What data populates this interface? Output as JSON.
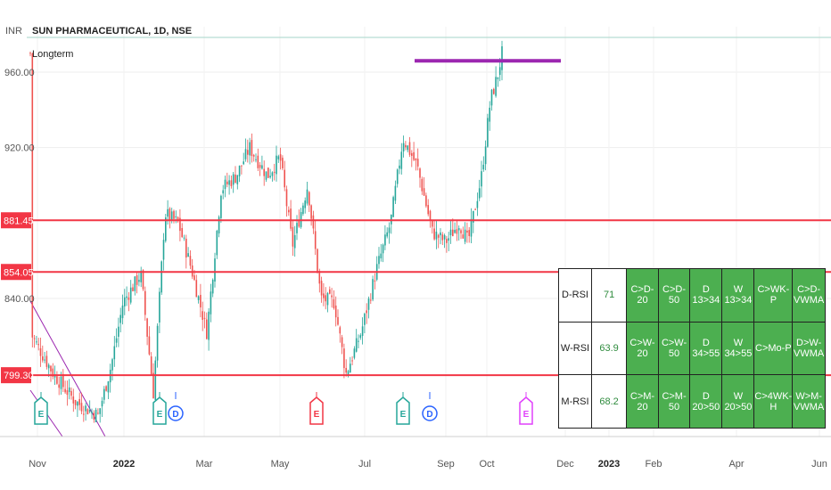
{
  "header": {
    "currency": "INR",
    "symbol_title": "SUN PHARMACEUTICAL, 1D, NSE",
    "indicator_name": "Longterm"
  },
  "chart_data": {
    "type": "candlestick",
    "title": "SUN PHARMACEUTICAL, 1D, NSE",
    "ylabel": "INR",
    "ylim": [
      773,
      976
    ],
    "y_ticks": [
      {
        "value": 960,
        "label": "960.00"
      },
      {
        "value": 920,
        "label": "920.00"
      },
      {
        "value": 840,
        "label": "840.00"
      }
    ],
    "x_ticks": [
      {
        "label": "Nov",
        "bold": false
      },
      {
        "label": "2022",
        "bold": true
      },
      {
        "label": "Mar",
        "bold": false
      },
      {
        "label": "May",
        "bold": false
      },
      {
        "label": "Jul",
        "bold": false
      },
      {
        "label": "Sep",
        "bold": false
      },
      {
        "label": "Oct",
        "bold": false
      },
      {
        "label": "Dec",
        "bold": false
      },
      {
        "label": "2023",
        "bold": true
      },
      {
        "label": "Feb",
        "bold": false
      },
      {
        "label": "Apr",
        "bold": false
      },
      {
        "label": "Jun",
        "bold": false
      }
    ],
    "levels": [
      {
        "value": 881.45,
        "label": "881.45",
        "color": "#f23645"
      },
      {
        "value": 854.05,
        "label": "854.05",
        "color": "#f23645"
      },
      {
        "value": 799.3,
        "label": "799.30",
        "color": "#f23645"
      }
    ],
    "target_line": {
      "value": 966,
      "color": "#9c27b0"
    },
    "trend_lines_color": "#9c27b0",
    "up_color": "#26a69a",
    "down_color": "#ef5350",
    "events": [
      {
        "type": "E",
        "color": "#26a69a"
      },
      {
        "type": "E",
        "color": "#26a69a"
      },
      {
        "type": "D",
        "color": "#2962ff"
      },
      {
        "type": "E",
        "color": "#f23645"
      },
      {
        "type": "E",
        "color": "#26a69a"
      },
      {
        "type": "D",
        "color": "#2962ff"
      },
      {
        "type": "E",
        "color": "#e040fb"
      }
    ]
  },
  "table": {
    "rows": [
      {
        "label": "D-RSI",
        "value": "71",
        "conds": [
          "C>D-20",
          "C>D-50",
          "D 13>34",
          "W 13>34",
          "C>WK-P",
          "C>D-VWMA"
        ]
      },
      {
        "label": "W-RSI",
        "value": "63.9",
        "conds": [
          "C>W-20",
          "C>W-50",
          "D 34>55",
          "W 34>55",
          "C>Mo-P",
          "D>W-VWMA"
        ]
      },
      {
        "label": "M-RSI",
        "value": "68.2",
        "conds": [
          "C>M-20",
          "C>M-50",
          "D 20>50",
          "W 20>50",
          "C>4WK-H",
          "W>M-VWMA"
        ]
      }
    ]
  }
}
